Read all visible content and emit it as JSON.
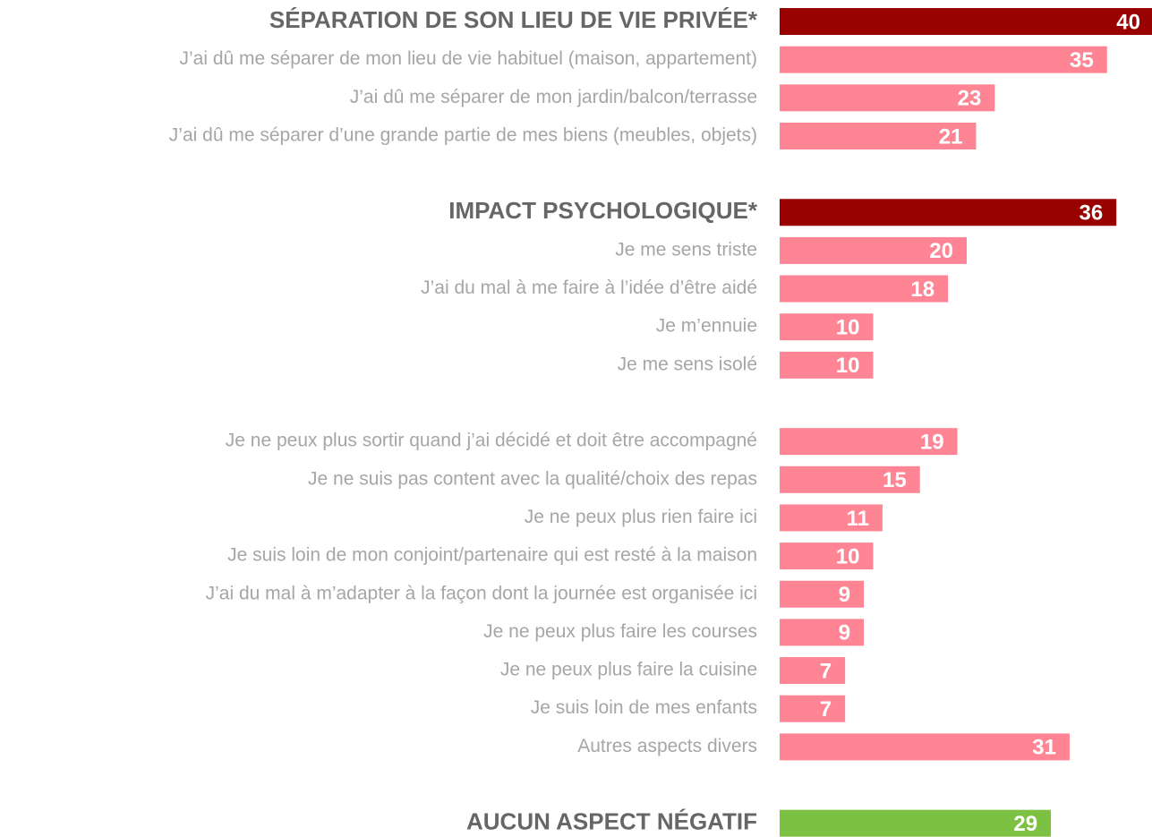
{
  "chart_data": {
    "type": "bar",
    "groups": [
      {
        "title": "SÉPARATION DE SON LIEU DE VIE PRIVÉE*",
        "value": 40,
        "color": "#990000",
        "item_color": "#ff8594",
        "items": [
          {
            "label": "J’ai dû me séparer de mon lieu de vie habituel (maison, appartement)",
            "value": 35
          },
          {
            "label": "J’ai dû me séparer de mon jardin/balcon/terrasse",
            "value": 23
          },
          {
            "label": "J’ai dû me séparer d’une grande partie de mes biens (meubles, objets)",
            "value": 21
          }
        ]
      },
      {
        "title": "IMPACT PSYCHOLOGIQUE*",
        "value": 36,
        "color": "#990000",
        "item_color": "#ff8594",
        "items": [
          {
            "label": "Je me sens triste",
            "value": 20
          },
          {
            "label": "J’ai du mal à me faire à l’idée d’être aidé",
            "value": 18
          },
          {
            "label": "Je m’ennuie",
            "value": 10
          },
          {
            "label": "Je me sens isolé",
            "value": 10
          }
        ]
      },
      {
        "item_color": "#ff8594",
        "items": [
          {
            "label": "Je ne peux plus sortir quand j’ai décidé et doit être accompagné",
            "value": 19
          },
          {
            "label": "Je ne suis pas content avec la qualité/choix des repas",
            "value": 15
          },
          {
            "label": "Je ne peux plus rien faire ici",
            "value": 11
          },
          {
            "label": "Je suis loin de mon conjoint/partenaire qui est resté à la maison",
            "value": 10
          },
          {
            "label": "J’ai du mal à m’adapter à la façon dont la journée est organisée ici",
            "value": 9
          },
          {
            "label": "Je ne peux plus faire les courses",
            "value": 9
          },
          {
            "label": "Je ne peux plus faire la cuisine",
            "value": 7
          },
          {
            "label": "Je suis loin de mes enfants",
            "value": 7
          },
          {
            "label": "Autres aspects divers",
            "value": 31
          }
        ]
      },
      {
        "title": "AUCUN ASPECT NÉGATIF",
        "value": 29,
        "color": "#7dc142",
        "items": []
      }
    ]
  }
}
